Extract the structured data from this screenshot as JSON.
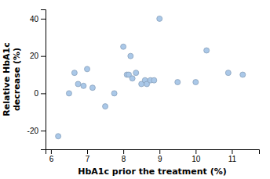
{
  "chart_data": {
    "type": "scatter",
    "x": [
      6.2,
      6.5,
      6.65,
      6.75,
      6.9,
      7.0,
      7.15,
      7.5,
      7.75,
      8.0,
      8.1,
      8.15,
      8.2,
      8.25,
      8.35,
      8.5,
      8.6,
      8.65,
      8.75,
      8.85,
      9.0,
      9.5,
      10.0,
      10.3,
      10.9,
      11.3
    ],
    "y": [
      -23,
      0,
      11,
      5,
      4,
      13,
      3,
      -7,
      0,
      25,
      10,
      10,
      20,
      8,
      11,
      5,
      7,
      5,
      7,
      7,
      40,
      6,
      6,
      23,
      11,
      10
    ],
    "color": "#aac8e8",
    "xlabel": "HbA1c prior the treatment (%)",
    "ylabel": "Relative HbA1c\ndecrease (%)",
    "xlim": [
      5.85,
      11.75
    ],
    "ylim": [
      -30,
      45
    ],
    "xticks": [
      6,
      7,
      8,
      9,
      10,
      11
    ],
    "yticks": [
      -20,
      0,
      20,
      40
    ],
    "grid": false
  }
}
